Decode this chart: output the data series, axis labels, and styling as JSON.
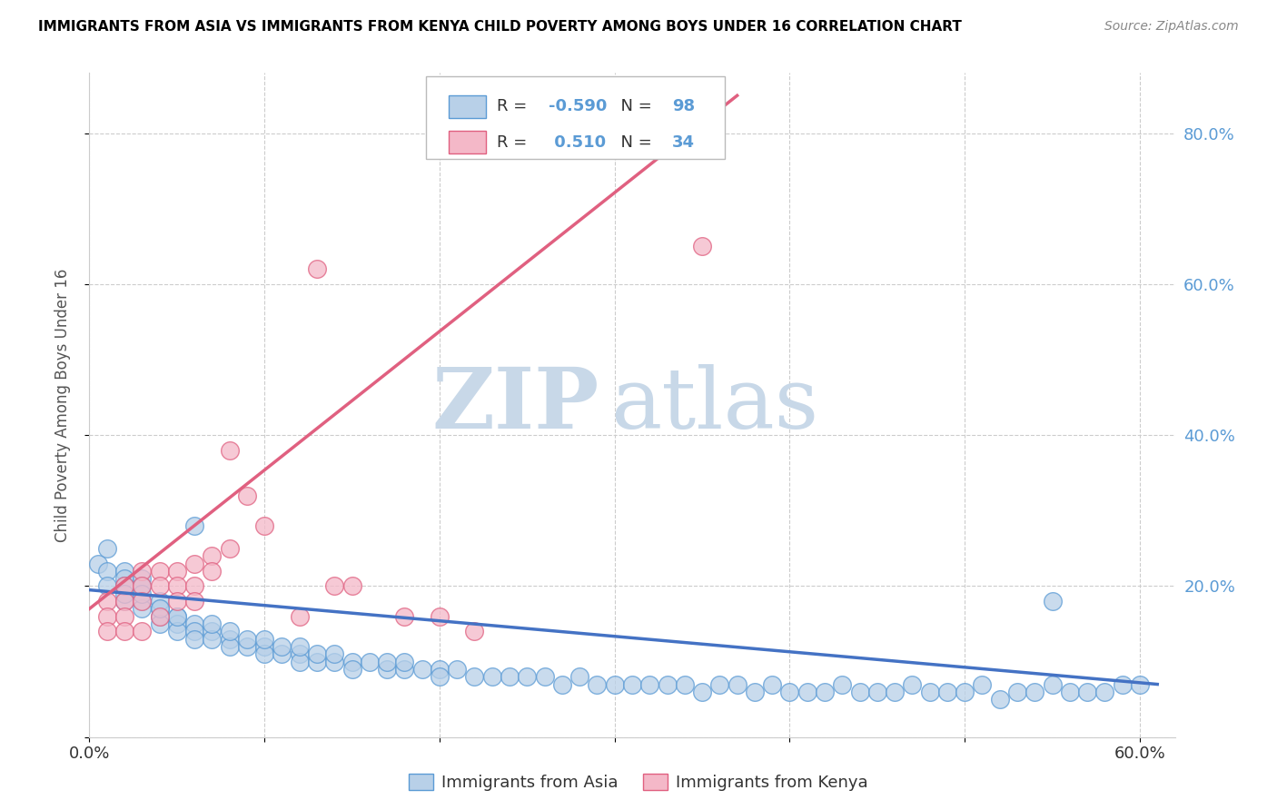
{
  "title": "IMMIGRANTS FROM ASIA VS IMMIGRANTS FROM KENYA CHILD POVERTY AMONG BOYS UNDER 16 CORRELATION CHART",
  "source": "Source: ZipAtlas.com",
  "ylabel": "Child Poverty Among Boys Under 16",
  "xlim": [
    0.0,
    0.62
  ],
  "ylim": [
    0.0,
    0.88
  ],
  "xticks": [
    0.0,
    0.1,
    0.2,
    0.3,
    0.4,
    0.5,
    0.6
  ],
  "xtick_labels": [
    "0.0%",
    "",
    "",
    "",
    "",
    "",
    "60.0%"
  ],
  "yticks": [
    0.0,
    0.2,
    0.4,
    0.6,
    0.8
  ],
  "ytick_labels": [
    "",
    "20.0%",
    "40.0%",
    "60.0%",
    "80.0%"
  ],
  "asia_color": "#b8d0e8",
  "asia_edge_color": "#5b9bd5",
  "kenya_color": "#f4b8c8",
  "kenya_edge_color": "#e06080",
  "trend_asia_color": "#4472c4",
  "trend_kenya_color": "#e06080",
  "R_asia": -0.59,
  "N_asia": 98,
  "R_kenya": 0.51,
  "N_kenya": 34,
  "legend_label_asia": "Immigrants from Asia",
  "legend_label_kenya": "Immigrants from Kenya",
  "watermark_zip": "ZIP",
  "watermark_atlas": "atlas",
  "watermark_color": "#c8d8e8",
  "asia_x": [
    0.005,
    0.01,
    0.01,
    0.01,
    0.02,
    0.02,
    0.02,
    0.02,
    0.02,
    0.03,
    0.03,
    0.03,
    0.03,
    0.03,
    0.04,
    0.04,
    0.04,
    0.04,
    0.04,
    0.05,
    0.05,
    0.05,
    0.05,
    0.06,
    0.06,
    0.06,
    0.07,
    0.07,
    0.07,
    0.08,
    0.08,
    0.08,
    0.09,
    0.09,
    0.1,
    0.1,
    0.1,
    0.11,
    0.11,
    0.12,
    0.12,
    0.12,
    0.13,
    0.13,
    0.14,
    0.14,
    0.15,
    0.15,
    0.16,
    0.17,
    0.17,
    0.18,
    0.18,
    0.19,
    0.2,
    0.2,
    0.21,
    0.22,
    0.23,
    0.24,
    0.25,
    0.26,
    0.27,
    0.28,
    0.29,
    0.3,
    0.31,
    0.32,
    0.33,
    0.34,
    0.35,
    0.36,
    0.37,
    0.38,
    0.39,
    0.4,
    0.41,
    0.42,
    0.43,
    0.44,
    0.45,
    0.46,
    0.47,
    0.48,
    0.49,
    0.5,
    0.51,
    0.52,
    0.53,
    0.54,
    0.55,
    0.56,
    0.57,
    0.58,
    0.59,
    0.6,
    0.06,
    0.55
  ],
  "asia_y": [
    0.23,
    0.25,
    0.22,
    0.2,
    0.22,
    0.21,
    0.2,
    0.18,
    0.19,
    0.21,
    0.2,
    0.18,
    0.17,
    0.19,
    0.17,
    0.16,
    0.18,
    0.15,
    0.17,
    0.16,
    0.15,
    0.14,
    0.16,
    0.15,
    0.14,
    0.13,
    0.14,
    0.13,
    0.15,
    0.13,
    0.12,
    0.14,
    0.12,
    0.13,
    0.12,
    0.11,
    0.13,
    0.11,
    0.12,
    0.11,
    0.1,
    0.12,
    0.1,
    0.11,
    0.1,
    0.11,
    0.1,
    0.09,
    0.1,
    0.09,
    0.1,
    0.09,
    0.1,
    0.09,
    0.09,
    0.08,
    0.09,
    0.08,
    0.08,
    0.08,
    0.08,
    0.08,
    0.07,
    0.08,
    0.07,
    0.07,
    0.07,
    0.07,
    0.07,
    0.07,
    0.06,
    0.07,
    0.07,
    0.06,
    0.07,
    0.06,
    0.06,
    0.06,
    0.07,
    0.06,
    0.06,
    0.06,
    0.07,
    0.06,
    0.06,
    0.06,
    0.07,
    0.05,
    0.06,
    0.06,
    0.07,
    0.06,
    0.06,
    0.06,
    0.07,
    0.07,
    0.28,
    0.18
  ],
  "kenya_x": [
    0.01,
    0.01,
    0.01,
    0.02,
    0.02,
    0.02,
    0.02,
    0.03,
    0.03,
    0.03,
    0.03,
    0.04,
    0.04,
    0.04,
    0.05,
    0.05,
    0.05,
    0.06,
    0.06,
    0.06,
    0.07,
    0.07,
    0.08,
    0.08,
    0.09,
    0.1,
    0.12,
    0.13,
    0.14,
    0.15,
    0.18,
    0.2,
    0.22,
    0.35
  ],
  "kenya_y": [
    0.18,
    0.16,
    0.14,
    0.2,
    0.18,
    0.16,
    0.14,
    0.22,
    0.2,
    0.18,
    0.14,
    0.22,
    0.2,
    0.16,
    0.22,
    0.2,
    0.18,
    0.23,
    0.2,
    0.18,
    0.24,
    0.22,
    0.38,
    0.25,
    0.32,
    0.28,
    0.16,
    0.62,
    0.2,
    0.2,
    0.16,
    0.16,
    0.14,
    0.65
  ],
  "kenya_trend_x0": 0.0,
  "kenya_trend_y0": 0.17,
  "kenya_trend_x1": 0.37,
  "kenya_trend_y1": 0.85,
  "asia_trend_x0": 0.0,
  "asia_trend_y0": 0.195,
  "asia_trend_x1": 0.61,
  "asia_trend_y1": 0.07
}
